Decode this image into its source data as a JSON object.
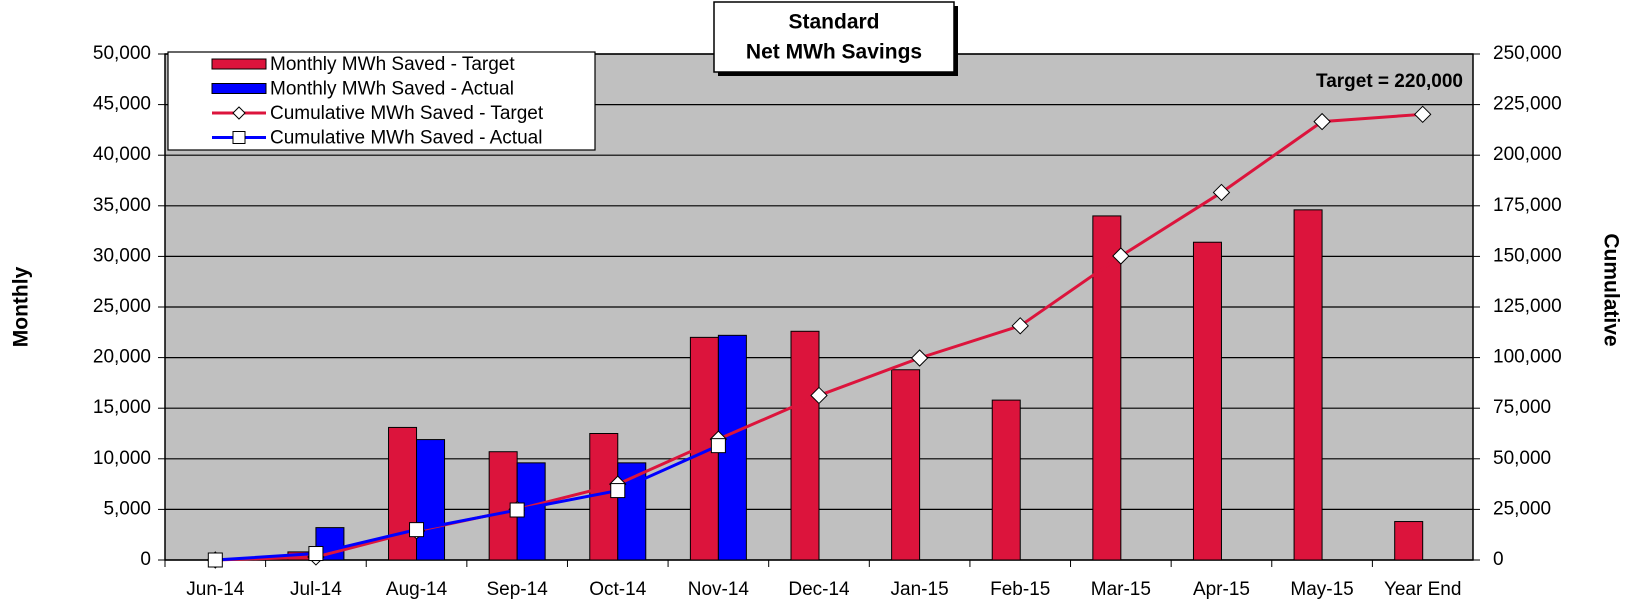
{
  "chart_data": {
    "type": "bar",
    "title": [
      "Standard",
      "Net MWh Savings"
    ],
    "y_label": "Monthly",
    "y2_label": "Cumulative",
    "annotation": "Target = 220,000",
    "categories": [
      "Jun-14",
      "Jul-14",
      "Aug-14",
      "Sep-14",
      "Oct-14",
      "Nov-14",
      "Dec-14",
      "Jan-15",
      "Feb-15",
      "Mar-15",
      "Apr-15",
      "May-15",
      "Year End"
    ],
    "series": [
      {
        "name": "Monthly MWh Saved - Target",
        "type": "bar",
        "color": "#dc143c",
        "values": [
          0,
          800,
          13100,
          10700,
          12500,
          22000,
          22600,
          18800,
          15800,
          34000,
          31400,
          34600,
          3800
        ]
      },
      {
        "name": "Monthly MWh Saved - Actual",
        "type": "bar",
        "color": "#0000ff",
        "values": [
          0,
          3200,
          11900,
          9600,
          9600,
          22200,
          null,
          null,
          null,
          null,
          null,
          null,
          null
        ]
      },
      {
        "name": "Cumulative MWh Saved - Target",
        "type": "line",
        "axis": "y2",
        "marker": "diamond",
        "color": "#dc143c",
        "values": [
          0,
          1500,
          14400,
          25000,
          37500,
          59700,
          81300,
          99800,
          115700,
          150200,
          181600,
          216600,
          220200
        ]
      },
      {
        "name": "Cumulative MWh Saved - Actual",
        "type": "line",
        "axis": "y2",
        "marker": "square",
        "color": "#0000ff",
        "values": [
          0,
          3200,
          15000,
          24700,
          34300,
          56500,
          null,
          null,
          null,
          null,
          null,
          null,
          null
        ]
      }
    ],
    "ylim": [
      0,
      50000
    ],
    "yticks": [
      0,
      {
        "value": 5000,
        "label": "5,000"
      },
      {
        "value": 10000,
        "label": "10,000"
      },
      {
        "value": 15000,
        "label": "15,000"
      },
      {
        "value": 20000,
        "label": "20,000"
      },
      {
        "value": 25000,
        "label": "25,000"
      },
      {
        "value": 30000,
        "label": "30,000"
      },
      {
        "value": 35000,
        "label": "35,000"
      },
      {
        "value": 40000,
        "label": "40,000"
      },
      {
        "value": 45000,
        "label": "45,000"
      },
      {
        "value": 50000,
        "label": "50,000"
      }
    ],
    "y2lim": [
      0,
      250000
    ],
    "y2ticks": [
      0,
      {
        "value": 25000,
        "label": "25,000"
      },
      {
        "value": 50000,
        "label": "50,000"
      },
      {
        "value": 75000,
        "label": "75,000"
      },
      {
        "value": 100000,
        "label": "100,000"
      },
      {
        "value": 125000,
        "label": "125,000"
      },
      {
        "value": 150000,
        "label": "150,000"
      },
      {
        "value": 175000,
        "label": "175,000"
      },
      {
        "value": 200000,
        "label": "200,000"
      },
      {
        "value": 225000,
        "label": "225,000"
      },
      {
        "value": 250000,
        "label": "250,000"
      }
    ],
    "grid": true,
    "legend": "top-left"
  }
}
